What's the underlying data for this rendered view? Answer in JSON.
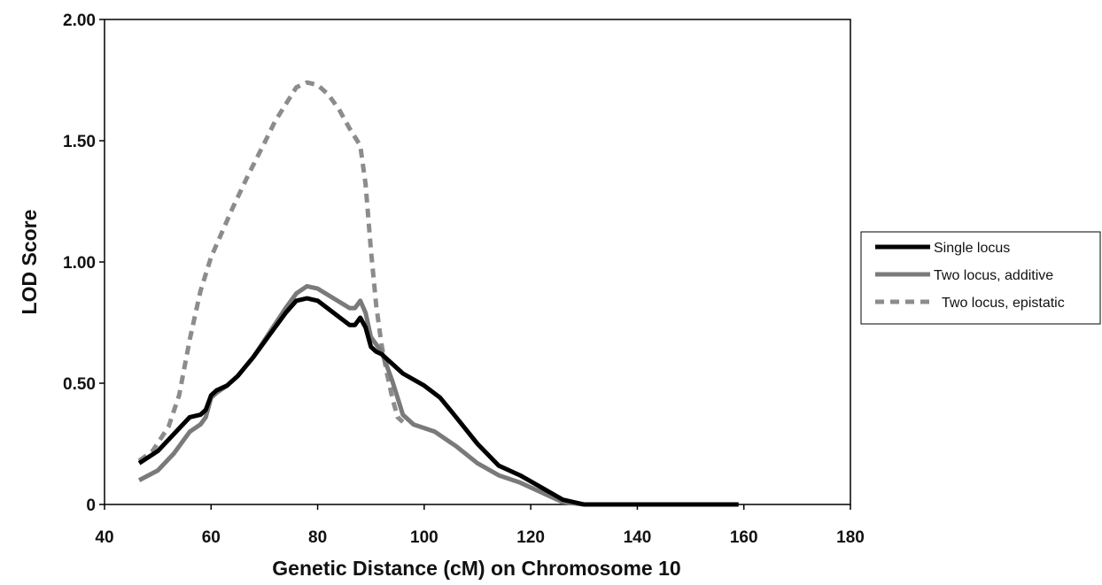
{
  "chart_data": {
    "type": "line",
    "title": "",
    "xlabel": "Genetic Distance (cM) on Chromosome 10",
    "ylabel": "LOD Score",
    "xlim": [
      40,
      180
    ],
    "ylim": [
      0,
      2.0
    ],
    "x_ticks": [
      "40",
      "60",
      "80",
      "100",
      "120",
      "140",
      "160",
      "180"
    ],
    "y_ticks": [
      "0",
      "0.50",
      "1.00",
      "1.50",
      "2.00"
    ],
    "grid": false,
    "legend_position": "right",
    "series": [
      {
        "name": "Single locus",
        "color": "#000000",
        "style": "solid",
        "points": [
          [
            46.5,
            0.17
          ],
          [
            50,
            0.22
          ],
          [
            53,
            0.29
          ],
          [
            56,
            0.36
          ],
          [
            58,
            0.37
          ],
          [
            59,
            0.39
          ],
          [
            60,
            0.45
          ],
          [
            61,
            0.47
          ],
          [
            63,
            0.49
          ],
          [
            65,
            0.53
          ],
          [
            68,
            0.61
          ],
          [
            71,
            0.7
          ],
          [
            74,
            0.79
          ],
          [
            76,
            0.84
          ],
          [
            78,
            0.85
          ],
          [
            80,
            0.84
          ],
          [
            83,
            0.79
          ],
          [
            86,
            0.74
          ],
          [
            87,
            0.74
          ],
          [
            88,
            0.77
          ],
          [
            89,
            0.73
          ],
          [
            90,
            0.65
          ],
          [
            91,
            0.63
          ],
          [
            92,
            0.62
          ],
          [
            94,
            0.58
          ],
          [
            96,
            0.54
          ],
          [
            100,
            0.49
          ],
          [
            103,
            0.44
          ],
          [
            106,
            0.36
          ],
          [
            110,
            0.25
          ],
          [
            114,
            0.16
          ],
          [
            118,
            0.12
          ],
          [
            122,
            0.07
          ],
          [
            126,
            0.02
          ],
          [
            130,
            0.0
          ],
          [
            140,
            0.0
          ],
          [
            150,
            0.0
          ],
          [
            159,
            0.0
          ]
        ]
      },
      {
        "name": "Two locus, additive",
        "color": "#7a7a7a",
        "style": "solid",
        "points": [
          [
            46.5,
            0.1
          ],
          [
            50,
            0.14
          ],
          [
            53,
            0.21
          ],
          [
            56,
            0.3
          ],
          [
            58,
            0.33
          ],
          [
            59,
            0.36
          ],
          [
            60,
            0.44
          ],
          [
            61,
            0.46
          ],
          [
            63,
            0.49
          ],
          [
            65,
            0.53
          ],
          [
            68,
            0.61
          ],
          [
            71,
            0.71
          ],
          [
            74,
            0.81
          ],
          [
            76,
            0.87
          ],
          [
            78,
            0.9
          ],
          [
            80,
            0.89
          ],
          [
            83,
            0.85
          ],
          [
            86,
            0.81
          ],
          [
            87,
            0.81
          ],
          [
            88,
            0.84
          ],
          [
            89,
            0.79
          ],
          [
            90,
            0.69
          ],
          [
            92,
            0.63
          ],
          [
            93,
            0.57
          ],
          [
            94,
            0.51
          ],
          [
            95,
            0.44
          ],
          [
            96,
            0.37
          ],
          [
            98,
            0.33
          ],
          [
            102,
            0.3
          ],
          [
            106,
            0.24
          ],
          [
            110,
            0.17
          ],
          [
            114,
            0.12
          ],
          [
            118,
            0.09
          ],
          [
            122,
            0.05
          ],
          [
            126,
            0.01
          ],
          [
            130,
            0.0
          ],
          [
            140,
            0.0
          ],
          [
            150,
            0.0
          ],
          [
            159,
            0.0
          ]
        ]
      },
      {
        "name": "Two locus, epistatic",
        "color": "#8c8c8c",
        "style": "dashed",
        "points": [
          [
            46.5,
            0.18
          ],
          [
            49,
            0.22
          ],
          [
            52,
            0.32
          ],
          [
            54,
            0.45
          ],
          [
            56,
            0.68
          ],
          [
            58,
            0.88
          ],
          [
            60,
            1.02
          ],
          [
            62,
            1.12
          ],
          [
            64,
            1.22
          ],
          [
            67,
            1.36
          ],
          [
            70,
            1.49
          ],
          [
            72,
            1.58
          ],
          [
            74,
            1.65
          ],
          [
            76,
            1.72
          ],
          [
            78,
            1.74
          ],
          [
            80,
            1.73
          ],
          [
            82,
            1.69
          ],
          [
            84,
            1.63
          ],
          [
            86,
            1.55
          ],
          [
            88,
            1.48
          ],
          [
            89,
            1.32
          ],
          [
            90,
            1.05
          ],
          [
            91,
            0.82
          ],
          [
            92,
            0.66
          ],
          [
            93,
            0.54
          ],
          [
            94,
            0.44
          ],
          [
            95,
            0.36
          ],
          [
            96,
            0.34
          ]
        ]
      }
    ]
  }
}
